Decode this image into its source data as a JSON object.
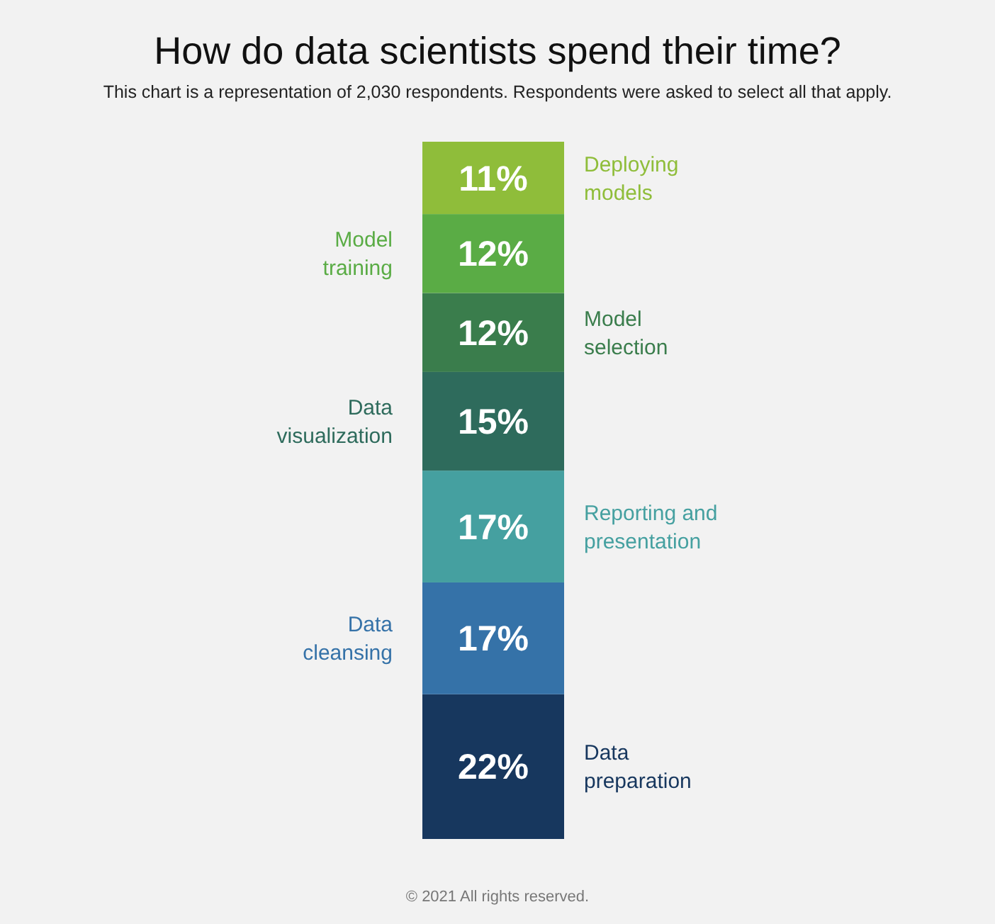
{
  "chart_data": {
    "type": "bar",
    "stacked": true,
    "title": "How do data scientists spend their time?",
    "subtitle": "This chart is a representation of 2,030 respondents. Respondents were asked to select all that apply.",
    "categories": [
      null
    ],
    "series": [
      {
        "name": "Data preparation",
        "color": "#17375e",
        "values": [
          22
        ],
        "value_labels": [
          "22%"
        ]
      },
      {
        "name": "Data cleansing",
        "color": "#3572a8",
        "values": [
          17
        ],
        "value_labels": [
          "17%"
        ]
      },
      {
        "name": "Reporting and presentation",
        "color": "#45a0a0",
        "values": [
          17
        ],
        "value_labels": [
          "17%"
        ]
      },
      {
        "name": "Data visualization",
        "color": "#2e6b5c",
        "values": [
          15
        ],
        "value_labels": [
          "15%"
        ]
      },
      {
        "name": "Model selection",
        "color": "#3a7d4c",
        "values": [
          12
        ],
        "value_labels": [
          "12%"
        ]
      },
      {
        "name": "Model training",
        "color": "#5aac45",
        "values": [
          12
        ],
        "value_labels": [
          "12%"
        ]
      },
      {
        "name": "Deploying models",
        "color": "#8fbd3a",
        "values": [
          11
        ],
        "value_labels": [
          "11%"
        ]
      }
    ],
    "annotations": [
      "© 2021 All rights reserved."
    ]
  }
}
